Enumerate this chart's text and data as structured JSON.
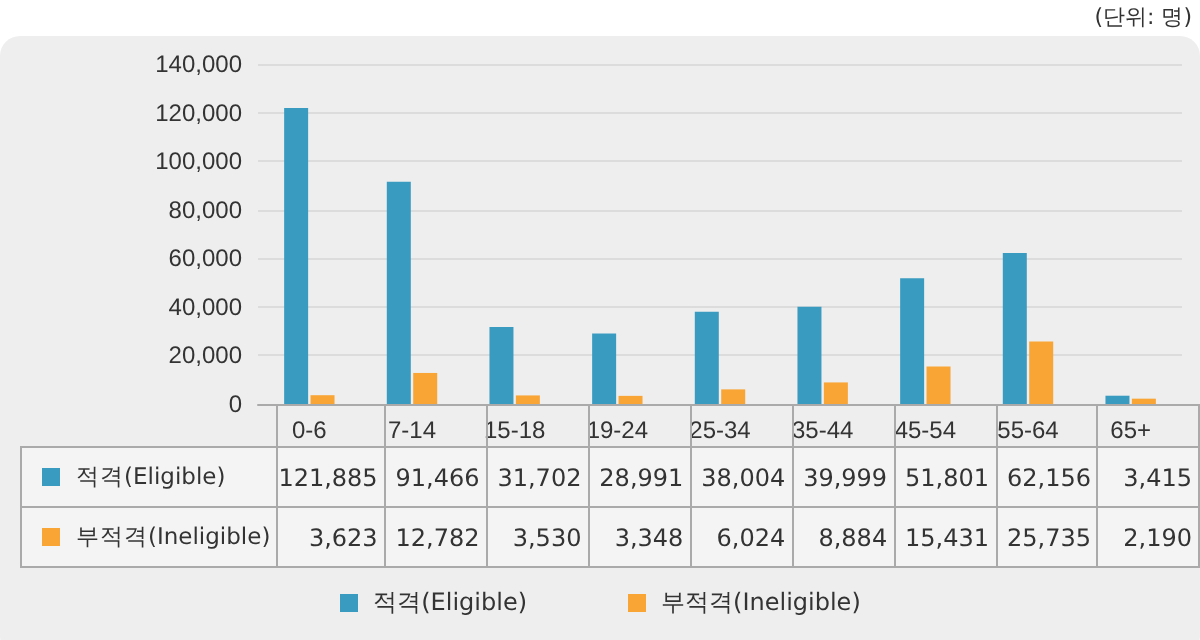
{
  "chart_data": {
    "type": "bar",
    "annotations": [
      "(단위: 명)"
    ],
    "categories": [
      "0-6",
      "7-14",
      "15-18",
      "19-24",
      "25-34",
      "35-44",
      "45-54",
      "55-64",
      "65+"
    ],
    "series": [
      {
        "name": "적격(Eligible)",
        "color": "#3a9bc1",
        "values": [
          121885,
          91466,
          31702,
          28991,
          38004,
          39999,
          51801,
          62156,
          3415
        ],
        "value_labels": [
          "121,885",
          "91,466",
          "31,702",
          "28,991",
          "38,004",
          "39,999",
          "51,801",
          "62,156",
          "3,415"
        ]
      },
      {
        "name": "부적격(Ineligible)",
        "color": "#f9a535",
        "values": [
          3623,
          12782,
          3530,
          3348,
          6024,
          8884,
          15431,
          25735,
          2190
        ],
        "value_labels": [
          "3,623",
          "12,782",
          "3,530",
          "3,348",
          "6,024",
          "8,884",
          "15,431",
          "25,735",
          "2,190"
        ]
      }
    ],
    "ylim": [
      0,
      140000
    ],
    "yticks": [
      0,
      {
        "value": 20000,
        "label": "20,000"
      },
      {
        "value": 40000,
        "label": "40,000"
      },
      {
        "value": 60000,
        "label": "60,000"
      },
      {
        "value": 80000,
        "label": "80,000"
      },
      {
        "value": 100000,
        "label": "100,000"
      },
      {
        "value": 120000,
        "label": "120,000"
      },
      {
        "value": 140000,
        "label": "140,000"
      }
    ],
    "grid": "y",
    "legend": "bottom"
  }
}
